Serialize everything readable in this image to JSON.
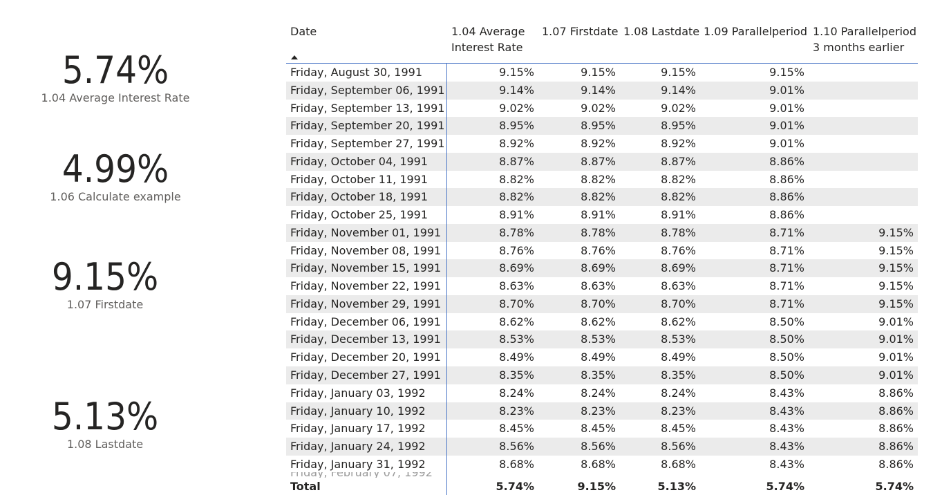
{
  "cards": [
    {
      "value": "5.74%",
      "label": "1.04 Average Interest Rate"
    },
    {
      "value": "4.99%",
      "label": "1.06 Calculate example"
    },
    {
      "value": "9.15%",
      "label": "1.07 Firstdate"
    },
    {
      "value": "5.13%",
      "label": "1.08 Lastdate"
    }
  ],
  "table": {
    "headers": {
      "date": "Date",
      "avg_l1": "1.04 Average",
      "avg_l2": "Interest Rate",
      "first": "1.07 Firstdate",
      "last": "1.08 Lastdate",
      "par": "1.09 Parallelperiod",
      "par3_l1": "1.10 Parallelperiod",
      "par3_l2": "3 months earlier"
    },
    "rows": [
      [
        "Friday, August 30, 1991",
        "9.15%",
        "9.15%",
        "9.15%",
        "9.15%",
        ""
      ],
      [
        "Friday, September 06, 1991",
        "9.14%",
        "9.14%",
        "9.14%",
        "9.01%",
        ""
      ],
      [
        "Friday, September 13, 1991",
        "9.02%",
        "9.02%",
        "9.02%",
        "9.01%",
        ""
      ],
      [
        "Friday, September 20, 1991",
        "8.95%",
        "8.95%",
        "8.95%",
        "9.01%",
        ""
      ],
      [
        "Friday, September 27, 1991",
        "8.92%",
        "8.92%",
        "8.92%",
        "9.01%",
        ""
      ],
      [
        "Friday, October 04, 1991",
        "8.87%",
        "8.87%",
        "8.87%",
        "8.86%",
        ""
      ],
      [
        "Friday, October 11, 1991",
        "8.82%",
        "8.82%",
        "8.82%",
        "8.86%",
        ""
      ],
      [
        "Friday, October 18, 1991",
        "8.82%",
        "8.82%",
        "8.82%",
        "8.86%",
        ""
      ],
      [
        "Friday, October 25, 1991",
        "8.91%",
        "8.91%",
        "8.91%",
        "8.86%",
        ""
      ],
      [
        "Friday, November 01, 1991",
        "8.78%",
        "8.78%",
        "8.78%",
        "8.71%",
        "9.15%"
      ],
      [
        "Friday, November 08, 1991",
        "8.76%",
        "8.76%",
        "8.76%",
        "8.71%",
        "9.15%"
      ],
      [
        "Friday, November 15, 1991",
        "8.69%",
        "8.69%",
        "8.69%",
        "8.71%",
        "9.15%"
      ],
      [
        "Friday, November 22, 1991",
        "8.63%",
        "8.63%",
        "8.63%",
        "8.71%",
        "9.15%"
      ],
      [
        "Friday, November 29, 1991",
        "8.70%",
        "8.70%",
        "8.70%",
        "8.71%",
        "9.15%"
      ],
      [
        "Friday, December 06, 1991",
        "8.62%",
        "8.62%",
        "8.62%",
        "8.50%",
        "9.01%"
      ],
      [
        "Friday, December 13, 1991",
        "8.53%",
        "8.53%",
        "8.53%",
        "8.50%",
        "9.01%"
      ],
      [
        "Friday, December 20, 1991",
        "8.49%",
        "8.49%",
        "8.49%",
        "8.50%",
        "9.01%"
      ],
      [
        "Friday, December 27, 1991",
        "8.35%",
        "8.35%",
        "8.35%",
        "8.50%",
        "9.01%"
      ],
      [
        "Friday, January 03, 1992",
        "8.24%",
        "8.24%",
        "8.24%",
        "8.43%",
        "8.86%"
      ],
      [
        "Friday, January 10, 1992",
        "8.23%",
        "8.23%",
        "8.23%",
        "8.43%",
        "8.86%"
      ],
      [
        "Friday, January 17, 1992",
        "8.45%",
        "8.45%",
        "8.45%",
        "8.43%",
        "8.86%"
      ],
      [
        "Friday, January 24, 1992",
        "8.56%",
        "8.56%",
        "8.56%",
        "8.43%",
        "8.86%"
      ],
      [
        "Friday, January 31, 1992",
        "8.68%",
        "8.68%",
        "8.68%",
        "8.43%",
        "8.86%"
      ]
    ],
    "total": [
      "Total",
      "5.74%",
      "9.15%",
      "5.13%",
      "5.74%",
      "5.74%"
    ]
  }
}
